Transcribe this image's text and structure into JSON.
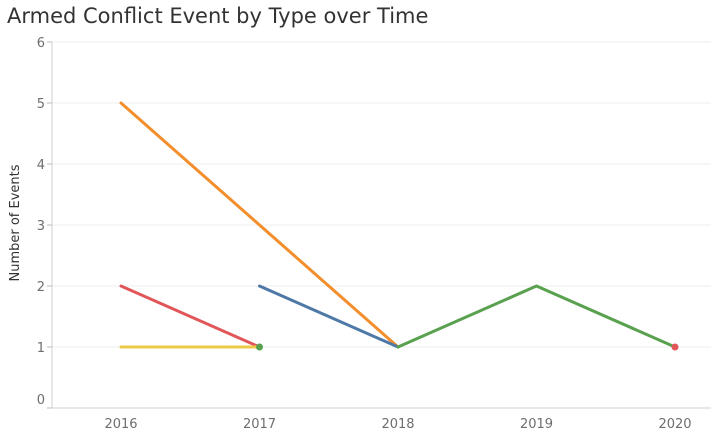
{
  "chart_data": {
    "type": "line",
    "title": "Armed Conflict Event by Type over Time",
    "xlabel": "",
    "ylabel": "Number of Events",
    "x_categories": [
      "2016",
      "2017",
      "2018",
      "2019",
      "2020"
    ],
    "y_ticks": [
      0,
      1,
      2,
      3,
      4,
      5,
      6
    ],
    "ylim": [
      0,
      6.2
    ],
    "grid": true,
    "legend": "none",
    "series": [
      {
        "color": "#f28e2b",
        "points": [
          {
            "x": "2016",
            "y": 5
          },
          {
            "x": "2018",
            "y": 1
          }
        ]
      },
      {
        "color": "#e15759",
        "points": [
          {
            "x": "2016",
            "y": 2
          },
          {
            "x": "2017",
            "y": 1
          }
        ]
      },
      {
        "color": "#edc948",
        "points": [
          {
            "x": "2016",
            "y": 1
          },
          {
            "x": "2017",
            "y": 1
          }
        ]
      },
      {
        "color": "#4e79a7",
        "points": [
          {
            "x": "2017",
            "y": 2
          },
          {
            "x": "2018",
            "y": 1
          }
        ]
      },
      {
        "color": "#59a14f",
        "points": [
          {
            "x": "2018",
            "y": 1
          },
          {
            "x": "2019",
            "y": 2
          },
          {
            "x": "2020",
            "y": 1
          }
        ]
      }
    ],
    "markers": [
      {
        "color": "#59a14f",
        "x": "2017",
        "y": 1
      },
      {
        "color": "#e15759",
        "x": "2020",
        "y": 1
      }
    ]
  }
}
